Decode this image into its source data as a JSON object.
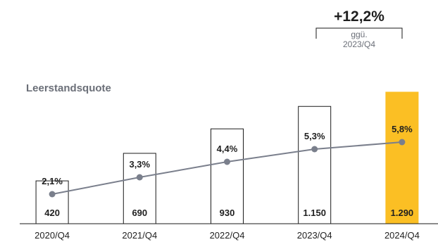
{
  "chart_data": {
    "type": "bar",
    "categories": [
      "2020/Q4",
      "2021/Q4",
      "2022/Q4",
      "2023/Q4",
      "2024/Q4"
    ],
    "series": [
      {
        "values": [
          420,
          690,
          930,
          1150,
          1290
        ],
        "value_labels": [
          "420",
          "690",
          "930",
          "1.150",
          "1.290"
        ]
      },
      {
        "name": "Leerstandsquote",
        "type": "line",
        "values": [
          2.1,
          3.3,
          4.4,
          5.3,
          5.8
        ],
        "value_labels": [
          "2,1%",
          "3,3%",
          "4,4%",
          "5,3%",
          "5,8%"
        ]
      }
    ],
    "annotation": {
      "value": "+12,2%",
      "note_line1": "ggü.",
      "note_line2": "2023/Q4"
    },
    "highlight_index": 4,
    "ylim": [
      0,
      1400
    ],
    "line_ylim": [
      0,
      10
    ],
    "colors": {
      "highlight": "#FBBF24",
      "bar_stroke": "#1a1a1a",
      "line": "#7a7f8c",
      "text": "#1f1f1f",
      "muted": "#6b6f78"
    }
  }
}
